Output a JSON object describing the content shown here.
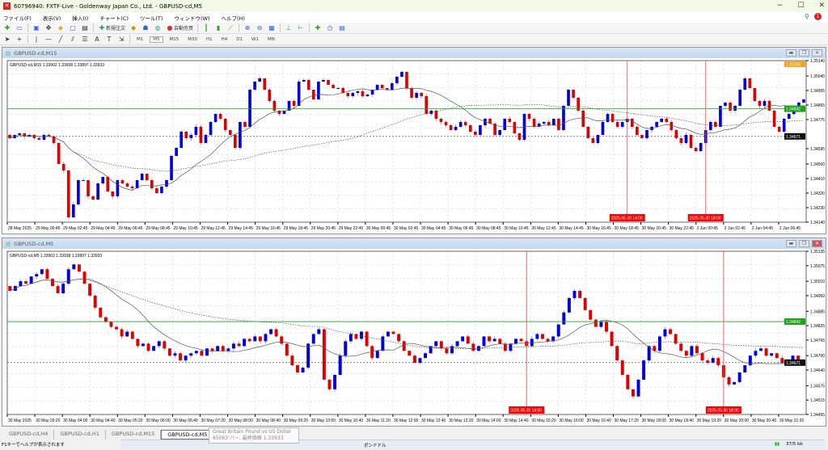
{
  "window": {
    "title": "60796940: FXTF-Live - Goldenway Japan Co., Ltd. - GBPUSD-cd,M5",
    "minimize": "−",
    "maximize": "☐",
    "close": "✕"
  },
  "menu": [
    "ファイル(F)",
    "表示(V)",
    "挿入(I)",
    "チャート(C)",
    "ツール(T)",
    "ウィンドウ(W)",
    "ヘルプ(H)"
  ],
  "notification_count": "1",
  "toolbar": {
    "new_order": "新規注文",
    "auto_trading": "自動売買",
    "timeframes": [
      "M1",
      "M5",
      "M15",
      "M30",
      "H1",
      "H4",
      "D1",
      "W1",
      "MN"
    ],
    "active_timeframe": "M5"
  },
  "colors": {
    "bull": "#0000e0",
    "bear": "#e00000",
    "green_line": "#1fa01f",
    "vline": "#ff4040",
    "bid_label": "#111111"
  },
  "charts": [
    {
      "window_title": "GBPUSD-cd,M15",
      "info": "GBPUSD-cd,M15  1.33902 1.33938 1.33897 1.33933",
      "price_ticks": [
        "1.35140",
        "1.35045",
        "1.34955",
        "1.34865",
        "1.34775",
        "1.34595",
        "1.34500",
        "1.34410",
        "1.34320",
        "1.34230",
        "1.34140"
      ],
      "ylim": [
        1.3414,
        1.3514
      ],
      "green_level": "1.34842",
      "bid_level": "1.34671",
      "top_label": "1.35156",
      "time_ticks": [
        "28 May 2025",
        "29 May 00:45",
        "29 May 02:45",
        "29 May 04:45",
        "29 May 06:45",
        "29 May 08:45",
        "29 May 10:45",
        "29 May 12:45",
        "29 May 14:45",
        "29 May 16:45",
        "29 May 18:45",
        "29 May 20:45",
        "29 May 22:45",
        "30 May 00:45",
        "30 May 02:45",
        "30 May 04:45",
        "30 May 06:45",
        "30 May 08:45",
        "30 May 10:45",
        "30 May 12:45",
        "30 May 14:45",
        "30 May 16:45",
        "30 May 18:45",
        "30 May 20:45",
        "30 May 22:45",
        "2 Jun 00:45",
        "2 Jun 02:45",
        "2 Jun 04:45",
        "2 Jun 06:45"
      ],
      "vlines": [
        {
          "label": "2025.05.30 14:00",
          "index": 126
        },
        {
          "label": "2025.05.30 18:00",
          "index": 142
        }
      ],
      "closes": [
        1.3466,
        1.3468,
        1.3469,
        1.3467,
        1.3468,
        1.3466,
        1.3465,
        1.3468,
        1.3467,
        1.3463,
        1.345,
        1.3446,
        1.3417,
        1.3425,
        1.344,
        1.344,
        1.343,
        1.3428,
        1.3438,
        1.3442,
        1.3433,
        1.343,
        1.344,
        1.3438,
        1.3436,
        1.3435,
        1.344,
        1.3444,
        1.344,
        1.3435,
        1.3432,
        1.3436,
        1.344,
        1.3455,
        1.346,
        1.347,
        1.3466,
        1.3468,
        1.3473,
        1.3463,
        1.3468,
        1.3476,
        1.3481,
        1.3478,
        1.3471,
        1.3468,
        1.346,
        1.3476,
        1.3473,
        1.3496,
        1.3501,
        1.3503,
        1.3496,
        1.3489,
        1.3483,
        1.3481,
        1.3483,
        1.3489,
        1.3486,
        1.3501,
        1.3502,
        1.3496,
        1.349,
        1.3501,
        1.3502,
        1.3499,
        1.3497,
        1.3497,
        1.3494,
        1.3492,
        1.3494,
        1.3495,
        1.3492,
        1.3493,
        1.3496,
        1.3499,
        1.3497,
        1.3496,
        1.35,
        1.3504,
        1.3507,
        1.3497,
        1.3491,
        1.3494,
        1.3492,
        1.3481,
        1.3483,
        1.3478,
        1.3476,
        1.3474,
        1.3471,
        1.3473,
        1.3476,
        1.3474,
        1.347,
        1.3468,
        1.3474,
        1.3478,
        1.3475,
        1.3468,
        1.3471,
        1.3478,
        1.3476,
        1.3469,
        1.3465,
        1.3481,
        1.3478,
        1.3473,
        1.3475,
        1.3476,
        1.3474,
        1.3478,
        1.3471,
        1.3486,
        1.3496,
        1.3491,
        1.3483,
        1.3473,
        1.3466,
        1.3463,
        1.3468,
        1.3476,
        1.3481,
        1.3476,
        1.3473,
        1.3476,
        1.3478,
        1.3473,
        1.3468,
        1.3466,
        1.3471,
        1.3473,
        1.3476,
        1.3478,
        1.3476,
        1.3471,
        1.3466,
        1.3463,
        1.3468,
        1.346,
        1.3458,
        1.3463,
        1.3471,
        1.3476,
        1.3473,
        1.3486,
        1.3488,
        1.3483,
        1.3486,
        1.3496,
        1.3503,
        1.3497,
        1.3489,
        1.3486,
        1.3489,
        1.3483,
        1.3473,
        1.347,
        1.3478,
        1.3481,
        1.3483,
        1.3488,
        1.349
      ]
    },
    {
      "window_title": "GBPUSD-cd,M5",
      "info": "GBPUSD-cd,M5  1.33902 1.33938 1.33897 1.33933",
      "price_ticks": [
        "1.35135",
        "1.35075",
        "1.35010",
        "1.34950",
        "1.34885",
        "1.34825",
        "1.34765",
        "1.34700",
        "1.34640",
        "1.34575",
        "1.34515",
        "1.34455"
      ],
      "ylim": [
        1.34455,
        1.35135
      ],
      "green_level": "1.34842",
      "bid_level": "1.34671",
      "time_ticks": [
        "30 May 2025",
        "30 May 03:20",
        "30 May 04:00",
        "30 May 04:40",
        "30 May 05:20",
        "30 May 06:00",
        "30 May 06:40",
        "30 May 07:20",
        "30 May 08:00",
        "30 May 08:40",
        "30 May 09:20",
        "30 May 10:00",
        "30 May 10:40",
        "30 May 11:20",
        "30 May 12:00",
        "30 May 12:40",
        "30 May 13:20",
        "30 May 14:00",
        "30 May 14:40",
        "30 May 15:20",
        "30 May 16:00",
        "30 May 16:40",
        "30 May 17:20",
        "30 May 18:00",
        "30 May 18:40",
        "30 May 19:20",
        "30 May 20:00",
        "30 May 20:40",
        "30 May 21:20"
      ],
      "vlines": [
        {
          "label": "2025.05.30 14:00",
          "index": 97
        },
        {
          "label": "2025.05.30 18:00",
          "index": 134
        }
      ],
      "closes": [
        1.3497,
        1.3499,
        1.3501,
        1.35,
        1.3503,
        1.3504,
        1.3506,
        1.3502,
        1.3499,
        1.3496,
        1.35,
        1.3506,
        1.3508,
        1.3505,
        1.35,
        1.3495,
        1.349,
        1.3486,
        1.3484,
        1.3482,
        1.3481,
        1.3478,
        1.348,
        1.3477,
        1.3474,
        1.3475,
        1.3472,
        1.3474,
        1.3476,
        1.3473,
        1.347,
        1.3471,
        1.3468,
        1.347,
        1.3471,
        1.3472,
        1.347,
        1.3473,
        1.3472,
        1.3474,
        1.3472,
        1.3473,
        1.3475,
        1.3474,
        1.3477,
        1.3476,
        1.3478,
        1.3476,
        1.3479,
        1.3481,
        1.3478,
        1.3475,
        1.347,
        1.3466,
        1.3463,
        1.3465,
        1.3475,
        1.3479,
        1.3481,
        1.346,
        1.3456,
        1.3462,
        1.347,
        1.3476,
        1.3479,
        1.3477,
        1.348,
        1.3474,
        1.3469,
        1.3472,
        1.3478,
        1.348,
        1.3479,
        1.3476,
        1.3472,
        1.347,
        1.3467,
        1.3469,
        1.3471,
        1.3474,
        1.3476,
        1.3473,
        1.3471,
        1.3474,
        1.3476,
        1.3478,
        1.3475,
        1.3472,
        1.3474,
        1.3478,
        1.3476,
        1.3477,
        1.3475,
        1.3472,
        1.3475,
        1.3477,
        1.3476,
        1.3474,
        1.3477,
        1.3479,
        1.3477,
        1.3476,
        1.3478,
        1.3483,
        1.3488,
        1.3494,
        1.3497,
        1.3494,
        1.3489,
        1.3485,
        1.3482,
        1.3484,
        1.348,
        1.3474,
        1.3468,
        1.3462,
        1.3456,
        1.3453,
        1.346,
        1.3468,
        1.3474,
        1.3472,
        1.3478,
        1.3481,
        1.3479,
        1.3475,
        1.3472,
        1.347,
        1.3474,
        1.3471,
        1.3468,
        1.3467,
        1.3469,
        1.3466,
        1.3461,
        1.3458,
        1.3459,
        1.3463,
        1.3466,
        1.347,
        1.3472,
        1.3473,
        1.347,
        1.3471,
        1.3469,
        1.3467,
        1.3468,
        1.347,
        1.3468,
        1.3467
      ]
    }
  ],
  "tabs": [
    "GBPUSD-cd,H4",
    "GBPUSD-cd,H1",
    "GBPUSD-cd,M15",
    "GBPUSD-cd,M5"
  ],
  "active_tab": "GBPUSD-cd,M5",
  "tooltip": {
    "line1": "Great Britain Pound vs US Dollar",
    "line2": "65063 バー, 最終価格 1.33933"
  },
  "status": {
    "help": "F1キーでヘルプが表示されます",
    "profile": "ポンドドル",
    "traffic": "37/5 kb"
  }
}
